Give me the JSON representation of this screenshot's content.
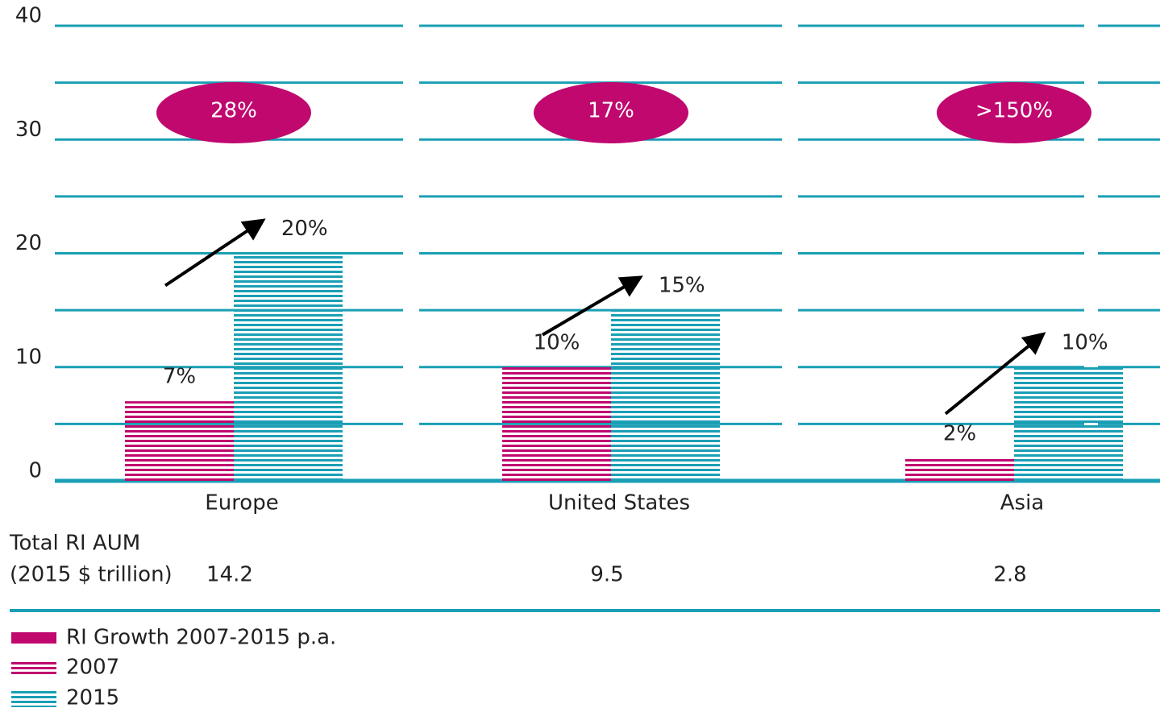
{
  "chart_data": {
    "type": "bar",
    "categories": [
      "Europe",
      "United States",
      "Asia"
    ],
    "series": [
      {
        "name": "2007",
        "color": "#c0086f",
        "values": [
          7,
          10,
          2
        ],
        "value_labels": [
          "7%",
          "10%",
          "2%"
        ]
      },
      {
        "name": "2015",
        "color": "#1a9fb5",
        "values": [
          20,
          15,
          10
        ],
        "value_labels": [
          "20%",
          "15%",
          "10%"
        ]
      }
    ],
    "growth_name": "RI Growth 2007-2015 p.a.",
    "growth_color": "#c0086f",
    "growth_labels": [
      "28%",
      "17%",
      ">150%"
    ],
    "totals_label": [
      "Total RI AUM",
      "(2015 $ trillion)"
    ],
    "totals": [
      14.2,
      9.5,
      2.8
    ],
    "ylim": [
      0,
      40
    ],
    "yticks": [
      0,
      10,
      20,
      30,
      40
    ],
    "yminor": [
      5,
      15,
      25,
      35
    ],
    "grid": true
  }
}
